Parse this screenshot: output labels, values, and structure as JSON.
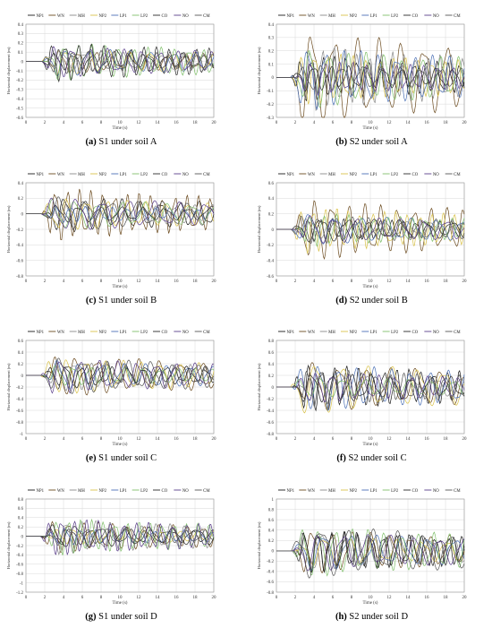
{
  "legend": [
    "NP1",
    "WN",
    "MH",
    "NP2",
    "LP1",
    "LP2",
    "CO",
    "NO",
    "CM"
  ],
  "series_colors": [
    "#1a1a1a",
    "#6b4a1e",
    "#8a8a8a",
    "#d9c24a",
    "#4a6fb5",
    "#7fbf6a",
    "#2a2a2a",
    "#5a3d8a",
    "#555555"
  ],
  "panels": [
    {
      "id": "a",
      "tag": "(a)",
      "caption": " S1 under soil A",
      "chart_data": {
        "type": "line",
        "xlabel": "Time (s)",
        "ylabel": "Horizontal displacement (m)",
        "xlim": [
          0,
          20
        ],
        "ylim": [
          -0.6,
          0.4
        ],
        "xticks": [
          0,
          2,
          4,
          6,
          8,
          10,
          12,
          14,
          16,
          18,
          20
        ],
        "yticks": [
          "0.4",
          "0.3",
          "0.2",
          "0.1",
          "0",
          "-0.1",
          "-0.2",
          "-0.3",
          "-0.4",
          "-0.5",
          "-0.6"
        ],
        "peak": 0.28
      }
    },
    {
      "id": "b",
      "tag": "(b)",
      "caption": " S2 under soil A",
      "chart_data": {
        "type": "line",
        "xlabel": "Time (s)",
        "ylabel": "Horizontal displacement (m)",
        "xlim": [
          0,
          20
        ],
        "ylim": [
          -0.3,
          0.4
        ],
        "xticks": [
          0,
          2,
          4,
          6,
          8,
          10,
          12,
          14,
          16,
          18,
          20
        ],
        "yticks": [
          "0.4",
          "0.3",
          "0.2",
          "0.1",
          "0",
          "-0.1",
          "-0.2",
          "-0.3"
        ],
        "peak": 0.35
      }
    },
    {
      "id": "c",
      "tag": "(c)",
      "caption": " S1 under soil B",
      "chart_data": {
        "type": "line",
        "xlabel": "Time (s)",
        "ylabel": "Horizontal displacement (m)",
        "xlim": [
          0,
          20
        ],
        "ylim": [
          -0.8,
          0.4
        ],
        "xticks": [
          0,
          2,
          4,
          6,
          8,
          10,
          12,
          14,
          16,
          18,
          20
        ],
        "yticks": [
          "0.4",
          "0.2",
          "0",
          "-0.2",
          "-0.4",
          "-0.6",
          "-0.8"
        ],
        "peak": 0.35
      }
    },
    {
      "id": "d",
      "tag": "(d)",
      "caption": " S2 under soil B",
      "chart_data": {
        "type": "line",
        "xlabel": "Time (s)",
        "ylabel": "Horizontal displacement (m)",
        "xlim": [
          0,
          20
        ],
        "ylim": [
          -0.6,
          0.6
        ],
        "xticks": [
          0,
          2,
          4,
          6,
          8,
          10,
          12,
          14,
          16,
          18,
          20
        ],
        "yticks": [
          "0.6",
          "0.4",
          "0.2",
          "0",
          "-0.2",
          "-0.4",
          "-0.6"
        ],
        "peak": 0.45
      }
    },
    {
      "id": "e",
      "tag": "(e)",
      "caption": " S1 under soil C",
      "chart_data": {
        "type": "line",
        "xlabel": "Time (s)",
        "ylabel": "Horizontal displacement (m)",
        "xlim": [
          0,
          20
        ],
        "ylim": [
          -1,
          0.6
        ],
        "xticks": [
          0,
          2,
          4,
          6,
          8,
          10,
          12,
          14,
          16,
          18,
          20
        ],
        "yticks": [
          "0.6",
          "0.4",
          "0.2",
          "0",
          "-0.2",
          "-0.4",
          "-0.6",
          "-0.8",
          "-1"
        ],
        "peak": 0.45
      }
    },
    {
      "id": "f",
      "tag": "(f)",
      "caption": " S2 under soil C",
      "chart_data": {
        "type": "line",
        "xlabel": "Time (s)",
        "ylabel": "Horizontal displacement (m)",
        "xlim": [
          0,
          20
        ],
        "ylim": [
          -0.8,
          0.8
        ],
        "xticks": [
          0,
          2,
          4,
          6,
          8,
          10,
          12,
          14,
          16,
          18,
          20
        ],
        "yticks": [
          "0.8",
          "0.6",
          "0.4",
          "0.2",
          "0",
          "-0.2",
          "-0.4",
          "-0.6",
          "-0.8"
        ],
        "peak": 0.6
      }
    },
    {
      "id": "g",
      "tag": "(g)",
      "caption": " S1 under soil D",
      "chart_data": {
        "type": "line",
        "xlabel": "Time (s)",
        "ylabel": "Horizontal displacement (m)",
        "xlim": [
          0,
          20
        ],
        "ylim": [
          -1.2,
          0.8
        ],
        "xticks": [
          0,
          2,
          4,
          6,
          8,
          10,
          12,
          14,
          16,
          18,
          20
        ],
        "yticks": [
          "0.8",
          "0.6",
          "0.4",
          "0.2",
          "0",
          "-0.2",
          "-0.4",
          "-0.6",
          "-0.8",
          "-1",
          "-1.2"
        ],
        "peak": 0.55
      }
    },
    {
      "id": "h",
      "tag": "(h)",
      "caption": " S2 under soil D",
      "chart_data": {
        "type": "line",
        "xlabel": "Time (s)",
        "ylabel": "Horizontal displacement (m)",
        "xlim": [
          0,
          20
        ],
        "ylim": [
          -0.8,
          1
        ],
        "xticks": [
          0,
          2,
          4,
          6,
          8,
          10,
          12,
          14,
          16,
          18,
          20
        ],
        "yticks": [
          "1",
          "0.8",
          "0.6",
          "0.4",
          "0.2",
          "0",
          "-0.2",
          "-0.4",
          "-0.6",
          "-0.8"
        ],
        "peak": 0.8
      }
    }
  ]
}
